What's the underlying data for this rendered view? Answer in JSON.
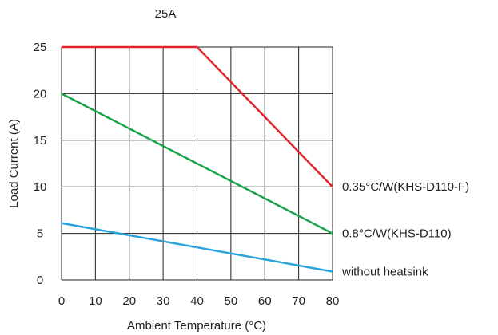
{
  "chart_data": {
    "type": "line",
    "title": "25A",
    "xlabel": "Ambient Temperature (°C)",
    "ylabel": "Load Current (A)",
    "xlim": [
      0,
      80
    ],
    "ylim": [
      0,
      25
    ],
    "xticks": [
      0,
      10,
      20,
      30,
      40,
      50,
      60,
      70,
      80
    ],
    "yticks": [
      0,
      5,
      10,
      15,
      20,
      25
    ],
    "grid": true,
    "legend": "inline-right",
    "series": [
      {
        "name": "0.35°C/W(KHS-D110-F)",
        "color": "#e0262b",
        "x": [
          0,
          40,
          80
        ],
        "y": [
          25,
          25,
          10
        ]
      },
      {
        "name": "0.8°C/W(KHS-D110)",
        "color": "#1aa34a",
        "x": [
          0,
          80
        ],
        "y": [
          20,
          5
        ]
      },
      {
        "name": "without heatsink",
        "color": "#2aa3dd",
        "x": [
          0,
          80
        ],
        "y": [
          6.1,
          0.9
        ]
      }
    ]
  }
}
